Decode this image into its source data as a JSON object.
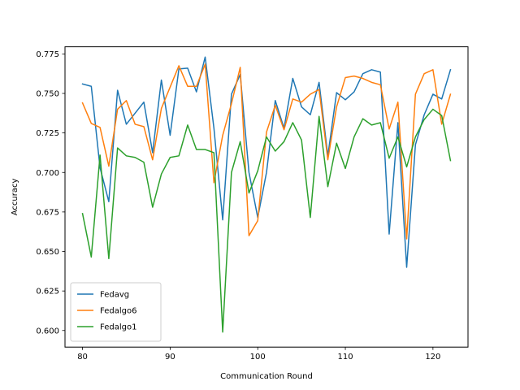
{
  "chart_data": {
    "type": "line",
    "title": "",
    "xlabel": "Communication Round",
    "ylabel": "Accuracy",
    "xlim": [
      78,
      124
    ],
    "ylim": [
      0.5895,
      0.7795
    ],
    "xticks": [
      80,
      90,
      100,
      110,
      120
    ],
    "yticks": [
      0.6,
      0.625,
      0.65,
      0.675,
      0.7,
      0.725,
      0.75,
      0.775
    ],
    "ytick_labels": [
      "0.600",
      "0.625",
      "0.650",
      "0.675",
      "0.700",
      "0.725",
      "0.750",
      "0.775"
    ],
    "grid": false,
    "legend_position": "lower-left",
    "x": [
      80,
      81,
      82,
      83,
      84,
      85,
      86,
      87,
      88,
      89,
      90,
      91,
      92,
      93,
      94,
      95,
      96,
      97,
      98,
      99,
      100,
      101,
      102,
      103,
      104,
      105,
      106,
      107,
      108,
      109,
      110,
      111,
      112,
      113,
      114,
      115,
      116,
      117,
      118,
      119,
      120,
      121,
      122
    ],
    "series": [
      {
        "name": "Fedavg",
        "color": "#1f77b4",
        "values": [
          0.756,
          0.7545,
          0.703,
          0.6815,
          0.752,
          0.7305,
          0.7375,
          0.7445,
          0.7125,
          0.7585,
          0.7235,
          0.7655,
          0.766,
          0.751,
          0.773,
          0.728,
          0.67,
          0.7495,
          0.762,
          0.7,
          0.6715,
          0.7,
          0.7455,
          0.728,
          0.7595,
          0.7415,
          0.7365,
          0.757,
          0.7105,
          0.7505,
          0.746,
          0.751,
          0.7625,
          0.765,
          0.7635,
          0.661,
          0.7315,
          0.64,
          0.7175,
          0.7365,
          0.7495,
          0.7465,
          0.765
        ]
      },
      {
        "name": "Fedalgo6",
        "color": "#ff7f0e",
        "values": [
          0.744,
          0.731,
          0.7285,
          0.704,
          0.74,
          0.7455,
          0.7305,
          0.729,
          0.708,
          0.7405,
          0.754,
          0.7675,
          0.7545,
          0.7545,
          0.7685,
          0.6935,
          0.7235,
          0.7435,
          0.7665,
          0.66,
          0.6695,
          0.7255,
          0.7425,
          0.727,
          0.7465,
          0.7445,
          0.7495,
          0.7525,
          0.708,
          0.7415,
          0.76,
          0.761,
          0.7595,
          0.757,
          0.7555,
          0.7275,
          0.7445,
          0.658,
          0.7495,
          0.7625,
          0.765,
          0.7305,
          0.7495
        ]
      },
      {
        "name": "Fedalgo1",
        "color": "#2ca02c",
        "values": [
          0.674,
          0.6465,
          0.711,
          0.6455,
          0.7155,
          0.7105,
          0.7095,
          0.7065,
          0.678,
          0.699,
          0.7095,
          0.7105,
          0.73,
          0.7145,
          0.7145,
          0.7125,
          0.599,
          0.7,
          0.7195,
          0.687,
          0.701,
          0.7225,
          0.7135,
          0.7195,
          0.7315,
          0.7205,
          0.6715,
          0.7355,
          0.691,
          0.7185,
          0.7025,
          0.7225,
          0.734,
          0.73,
          0.7315,
          0.709,
          0.7225,
          0.7035,
          0.7225,
          0.7335,
          0.74,
          0.736,
          0.7075
        ]
      }
    ]
  }
}
